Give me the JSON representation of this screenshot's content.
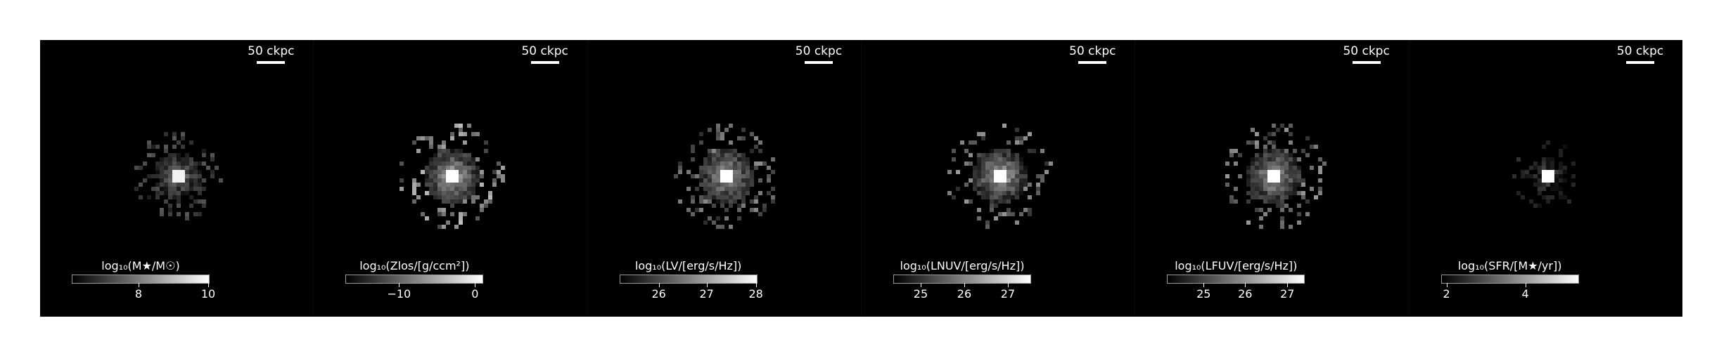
{
  "scale_bar_label": "50 ckpc",
  "panels": [
    {
      "id": "stellar-mass",
      "colorbar": {
        "title": "log₁₀(M★/M☉)",
        "ticks": [
          {
            "label": "8",
            "frac": 0.49
          },
          {
            "label": "10",
            "frac": 1.0
          }
        ]
      },
      "blob": {
        "cx": 197,
        "cy": 194,
        "spread": 34,
        "core": 0.95,
        "fill": 0.55,
        "dim": 0.35
      }
    },
    {
      "id": "metallicity",
      "colorbar": {
        "title": "log₁₀(Zlos/[g/ccm²])",
        "ticks": [
          {
            "label": "−10",
            "frac": 0.39
          },
          {
            "label": "0",
            "frac": 0.95
          }
        ]
      },
      "blob": {
        "cx": 197,
        "cy": 194,
        "spread": 40,
        "core": 1.0,
        "fill": 0.85,
        "dim": 0.75
      }
    },
    {
      "id": "v-band",
      "colorbar": {
        "title": "log₁₀(LV/[erg/s/Hz])",
        "ticks": [
          {
            "label": "26",
            "frac": 0.29
          },
          {
            "label": "27",
            "frac": 0.64
          },
          {
            "label": "28",
            "frac": 1.0
          }
        ]
      },
      "blob": {
        "cx": 197,
        "cy": 194,
        "spread": 40,
        "core": 1.0,
        "fill": 0.8,
        "dim": 0.55
      }
    },
    {
      "id": "nuv-band",
      "colorbar": {
        "title": "log₁₀(LNUV/[erg/s/Hz])",
        "ticks": [
          {
            "label": "25",
            "frac": 0.2
          },
          {
            "label": "26",
            "frac": 0.52
          },
          {
            "label": "27",
            "frac": 0.84
          }
        ]
      },
      "blob": {
        "cx": 197,
        "cy": 194,
        "spread": 40,
        "core": 1.0,
        "fill": 0.85,
        "dim": 0.6
      }
    },
    {
      "id": "fuv-band",
      "colorbar": {
        "title": "log₁₀(LFUV/[erg/s/Hz])",
        "ticks": [
          {
            "label": "25",
            "frac": 0.27
          },
          {
            "label": "26",
            "frac": 0.57
          },
          {
            "label": "27",
            "frac": 0.88
          }
        ]
      },
      "blob": {
        "cx": 197,
        "cy": 194,
        "spread": 40,
        "core": 1.0,
        "fill": 0.82,
        "dim": 0.6
      }
    },
    {
      "id": "sfr",
      "colorbar": {
        "title": "log₁₀(SFR/[M★/yr])",
        "ticks": [
          {
            "label": "2",
            "frac": 0.04
          },
          {
            "label": "4",
            "frac": 0.62
          }
        ]
      },
      "blob": {
        "cx": 197,
        "cy": 194,
        "spread": 26,
        "core": 1.0,
        "fill": 0.35,
        "dim": 0.2
      }
    }
  ]
}
